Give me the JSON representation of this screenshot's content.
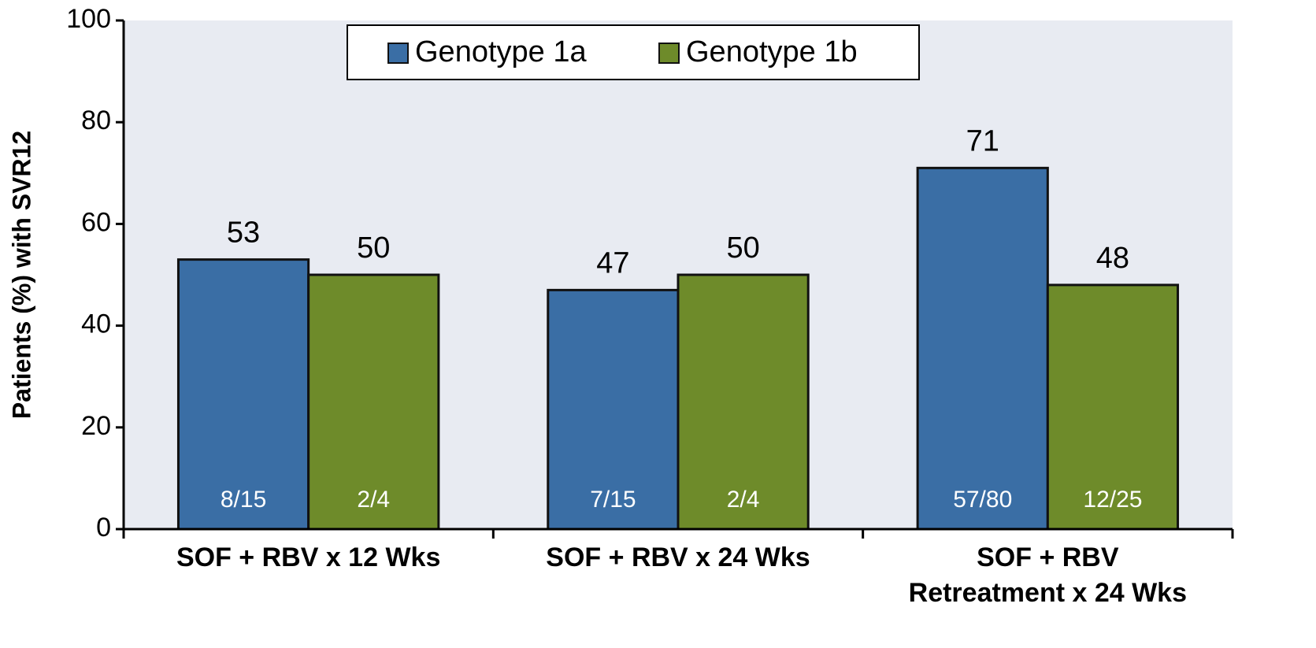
{
  "chart_data": {
    "type": "bar",
    "ylabel": "Patients (%) with SVR12",
    "categories": [
      "SOF + RBV x 12 Wks",
      "SOF + RBV x 24 Wks",
      "SOF + RBV\nRetreatment x 24 Wks"
    ],
    "series": [
      {
        "name": "Genotype 1a",
        "color": "#3a6ea5",
        "values": [
          53,
          47,
          71
        ],
        "count_labels": [
          "8/15",
          "7/15",
          "57/80"
        ]
      },
      {
        "name": "Genotype 1b",
        "color": "#6e8b2a",
        "values": [
          50,
          50,
          48
        ],
        "count_labels": [
          "2/4",
          "2/4",
          "12/25"
        ]
      }
    ],
    "ylim": [
      0,
      100
    ],
    "yticks": [
      0,
      20,
      40,
      60,
      80,
      100
    ],
    "grid": false,
    "legend": "top"
  }
}
